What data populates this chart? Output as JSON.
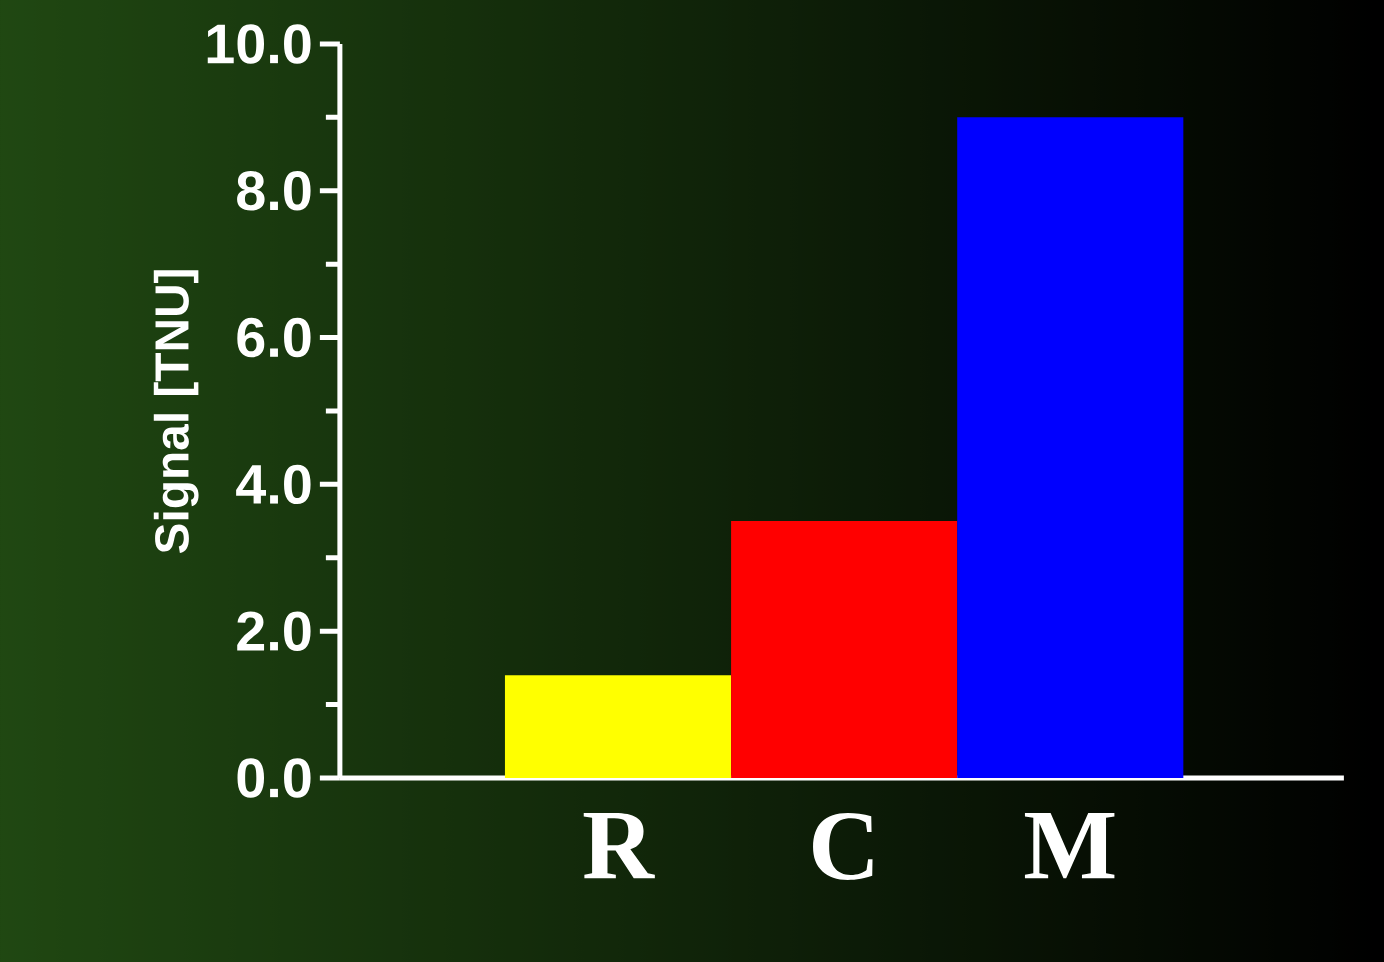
{
  "chart_data": {
    "type": "bar",
    "ylabel": "Signal [TNU]",
    "categories": [
      "R",
      "C",
      "M"
    ],
    "values": [
      1.4,
      3.5,
      9.0
    ],
    "colors": [
      "#ffff00",
      "#ff0000",
      "#0000ff"
    ],
    "ylim": [
      0,
      10
    ],
    "yticks": [
      {
        "value": 0,
        "label": "0.0"
      },
      {
        "value": 2,
        "label": "2.0"
      },
      {
        "value": 4,
        "label": "4.0"
      },
      {
        "value": 6,
        "label": "6.0"
      },
      {
        "value": 8,
        "label": "8.0"
      },
      {
        "value": 10,
        "label": "10.0"
      }
    ],
    "grid": false
  }
}
